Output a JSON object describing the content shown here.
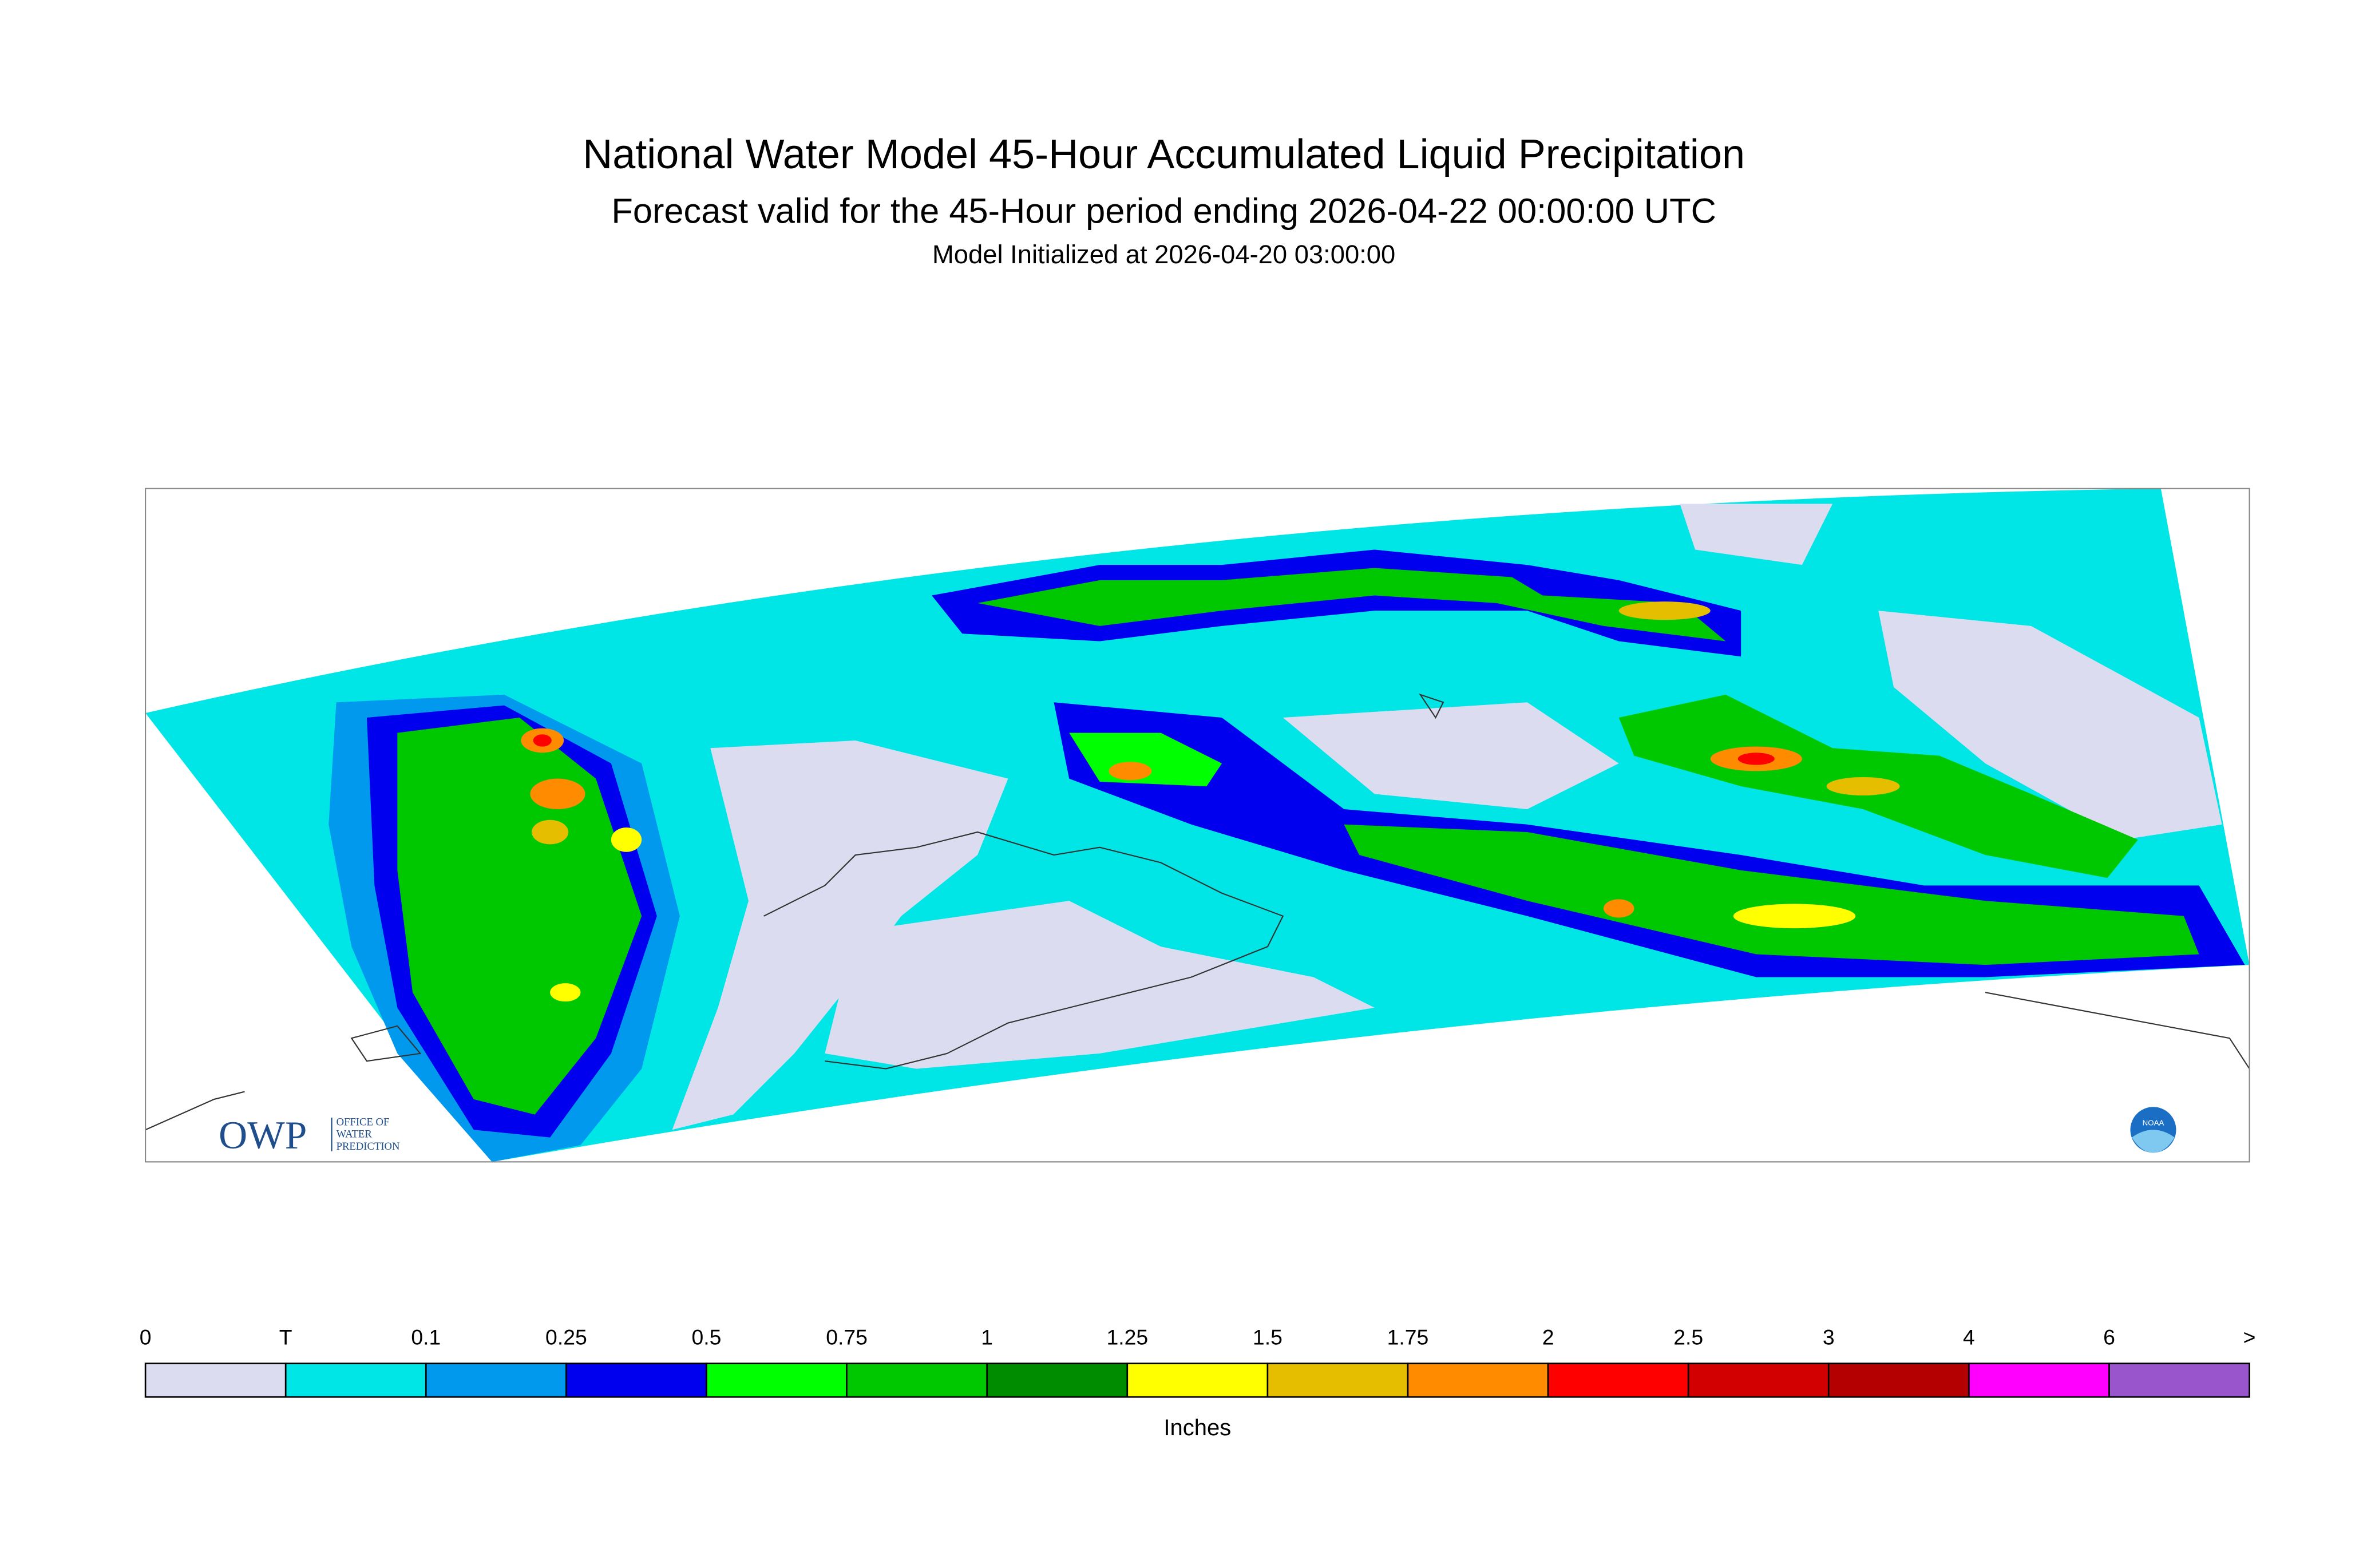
{
  "header": {
    "title": "National Water Model 45-Hour Accumulated Liquid Precipitation",
    "subtitle": "Forecast valid for the 45-Hour period ending 2026-04-22 00:00:00 UTC",
    "initialized": "Model Initialized at 2026-04-20 03:00:00"
  },
  "logos": {
    "owp": "OWP",
    "owp_text": [
      "OFFICE OF",
      "WATER",
      "PREDICTION"
    ],
    "noaa": "NOAA"
  },
  "legend": {
    "labels": [
      "0",
      "T",
      "0.1",
      "0.25",
      "0.5",
      "0.75",
      "1",
      "1.25",
      "1.5",
      "1.75",
      "2",
      "2.5",
      "3",
      "4",
      "6",
      ">"
    ],
    "colors": [
      "#dcdcf0",
      "#00e5e5",
      "#0099ee",
      "#0000ee",
      "#00ff00",
      "#00c800",
      "#008c00",
      "#ffff00",
      "#e6be00",
      "#ff8c00",
      "#ff0000",
      "#d20000",
      "#b40000",
      "#ff00ff",
      "#9955cc"
    ],
    "unit": "Inches"
  }
}
